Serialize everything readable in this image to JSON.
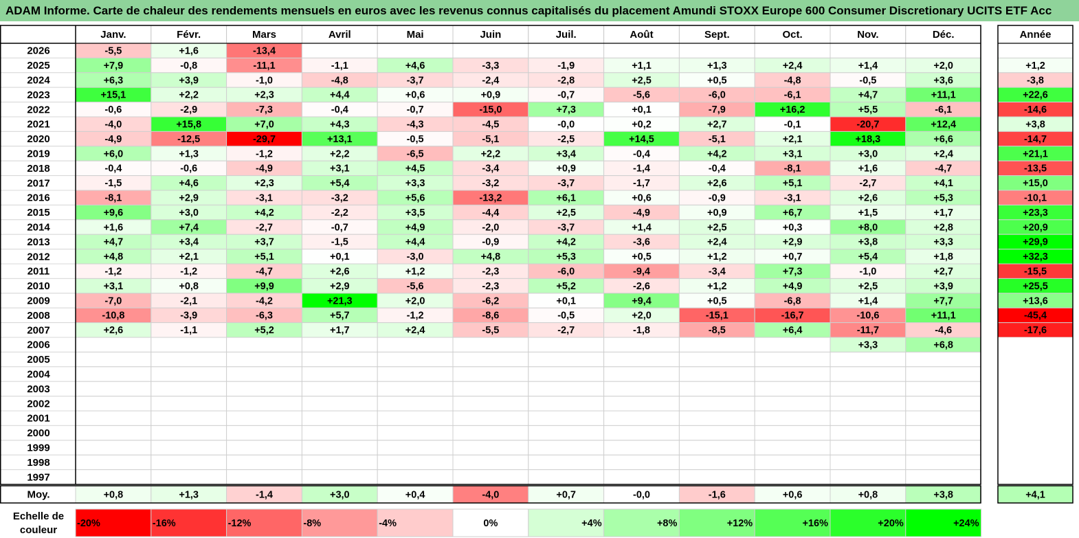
{
  "title": "ADAM Informe. Carte de chaleur des rendements mensuels en euros avec les revenus connus capitalisés du placement Amundi STOXX Europe 600 Consumer Discretionary UCITS ETF Acc",
  "chart_data": {
    "type": "heatmap",
    "months": [
      "Janv.",
      "Févr.",
      "Mars",
      "Avril",
      "Mai",
      "Juin",
      "Juil.",
      "Août",
      "Sept.",
      "Oct.",
      "Nov.",
      "Déc."
    ],
    "year_header": "Année",
    "rows": [
      {
        "year": "2026",
        "values": [
          "-5,5",
          "+1,6",
          "-13,4",
          "",
          "",
          "",
          "",
          "",
          "",
          "",
          "",
          ""
        ],
        "annual": ""
      },
      {
        "year": "2025",
        "values": [
          "+7,9",
          "-0,8",
          "-11,1",
          "-1,1",
          "+4,6",
          "-3,3",
          "-1,9",
          "+1,1",
          "+1,3",
          "+2,4",
          "+1,4",
          "+2,0"
        ],
        "annual": "+1,2"
      },
      {
        "year": "2024",
        "values": [
          "+6,3",
          "+3,9",
          "-1,0",
          "-4,8",
          "-3,7",
          "-2,4",
          "-2,8",
          "+2,5",
          "+0,5",
          "-4,8",
          "-0,5",
          "+3,6"
        ],
        "annual": "-3,8"
      },
      {
        "year": "2023",
        "values": [
          "+15,1",
          "+2,2",
          "+2,3",
          "+4,4",
          "+0,6",
          "+0,9",
          "-0,7",
          "-5,6",
          "-6,0",
          "-6,1",
          "+4,7",
          "+11,1"
        ],
        "annual": "+22,6"
      },
      {
        "year": "2022",
        "values": [
          "-0,6",
          "-2,9",
          "-7,3",
          "-0,4",
          "-0,7",
          "-15,0",
          "+7,3",
          "+0,1",
          "-7,9",
          "+16,2",
          "+5,5",
          "-6,1"
        ],
        "annual": "-14,6"
      },
      {
        "year": "2021",
        "values": [
          "-4,0",
          "+15,8",
          "+7,0",
          "+4,3",
          "-4,3",
          "-4,5",
          "-0,0",
          "+0,2",
          "+2,7",
          "-0,1",
          "-20,7",
          "+12,4"
        ],
        "annual": "+3,8"
      },
      {
        "year": "2020",
        "values": [
          "-4,9",
          "-12,5",
          "-29,7",
          "+13,1",
          "-0,5",
          "-5,1",
          "-2,5",
          "+14,5",
          "-5,1",
          "+2,1",
          "+18,3",
          "+6,6"
        ],
        "annual": "-14,7"
      },
      {
        "year": "2019",
        "values": [
          "+6,0",
          "+1,3",
          "-1,2",
          "+2,2",
          "-6,5",
          "+2,2",
          "+3,4",
          "-0,4",
          "+4,2",
          "+3,1",
          "+3,0",
          "+2,4"
        ],
        "annual": "+21,1"
      },
      {
        "year": "2018",
        "values": [
          "-0,4",
          "-0,6",
          "-4,9",
          "+3,1",
          "+4,5",
          "-3,4",
          "+0,9",
          "-1,4",
          "-0,4",
          "-8,1",
          "+1,6",
          "-4,7"
        ],
        "annual": "-13,5"
      },
      {
        "year": "2017",
        "values": [
          "-1,5",
          "+4,6",
          "+2,3",
          "+5,4",
          "+3,3",
          "-3,2",
          "-3,7",
          "-1,7",
          "+2,6",
          "+5,1",
          "-2,7",
          "+4,1"
        ],
        "annual": "+15,0"
      },
      {
        "year": "2016",
        "values": [
          "-8,1",
          "+2,9",
          "-3,1",
          "-3,2",
          "+5,6",
          "-13,2",
          "+6,1",
          "+0,6",
          "-0,9",
          "-3,1",
          "+2,6",
          "+5,3"
        ],
        "annual": "-10,1"
      },
      {
        "year": "2015",
        "values": [
          "+9,6",
          "+3,0",
          "+4,2",
          "-2,2",
          "+3,5",
          "-4,4",
          "+2,5",
          "-4,9",
          "+0,9",
          "+6,7",
          "+1,5",
          "+1,7"
        ],
        "annual": "+23,3"
      },
      {
        "year": "2014",
        "values": [
          "+1,6",
          "+7,4",
          "-2,7",
          "-0,7",
          "+4,9",
          "-2,0",
          "-3,7",
          "+1,4",
          "+2,5",
          "+0,3",
          "+8,0",
          "+2,8"
        ],
        "annual": "+20,9"
      },
      {
        "year": "2013",
        "values": [
          "+4,7",
          "+3,4",
          "+3,7",
          "-1,5",
          "+4,4",
          "-0,9",
          "+4,2",
          "-3,6",
          "+2,4",
          "+2,9",
          "+3,8",
          "+3,3"
        ],
        "annual": "+29,9"
      },
      {
        "year": "2012",
        "values": [
          "+4,8",
          "+2,1",
          "+5,1",
          "+0,1",
          "-3,0",
          "+4,8",
          "+5,3",
          "+0,5",
          "+1,2",
          "+0,7",
          "+5,4",
          "+1,8"
        ],
        "annual": "+32,3"
      },
      {
        "year": "2011",
        "values": [
          "-1,2",
          "-1,2",
          "-4,7",
          "+2,6",
          "+1,2",
          "-2,3",
          "-6,0",
          "-9,4",
          "-3,4",
          "+7,3",
          "-1,0",
          "+2,7"
        ],
        "annual": "-15,5"
      },
      {
        "year": "2010",
        "values": [
          "+3,1",
          "+0,8",
          "+9,9",
          "+2,9",
          "-5,6",
          "-2,3",
          "+5,2",
          "-2,6",
          "+1,2",
          "+4,9",
          "+2,5",
          "+3,9"
        ],
        "annual": "+25,5"
      },
      {
        "year": "2009",
        "values": [
          "-7,0",
          "-2,1",
          "-4,2",
          "+21,3",
          "+2,0",
          "-6,2",
          "+0,1",
          "+9,4",
          "+0,5",
          "-6,8",
          "+1,4",
          "+7,7"
        ],
        "annual": "+13,6"
      },
      {
        "year": "2008",
        "values": [
          "-10,8",
          "-3,9",
          "-6,3",
          "+5,7",
          "-1,2",
          "-8,6",
          "-0,5",
          "+2,0",
          "-15,1",
          "-16,7",
          "-10,6",
          "+11,1"
        ],
        "annual": "-45,4"
      },
      {
        "year": "2007",
        "values": [
          "+2,6",
          "-1,1",
          "+5,2",
          "+1,7",
          "+2,4",
          "-5,5",
          "-2,7",
          "-1,8",
          "-8,5",
          "+6,4",
          "-11,7",
          "-4,6"
        ],
        "annual": "-17,6"
      },
      {
        "year": "2006",
        "values": [
          "",
          "",
          "",
          "",
          "",
          "",
          "",
          "",
          "",
          "",
          "+3,3",
          "+6,8"
        ],
        "annual": ""
      },
      {
        "year": "2005",
        "values": [
          "",
          "",
          "",
          "",
          "",
          "",
          "",
          "",
          "",
          "",
          "",
          ""
        ],
        "annual": ""
      },
      {
        "year": "2004",
        "values": [
          "",
          "",
          "",
          "",
          "",
          "",
          "",
          "",
          "",
          "",
          "",
          ""
        ],
        "annual": ""
      },
      {
        "year": "2003",
        "values": [
          "",
          "",
          "",
          "",
          "",
          "",
          "",
          "",
          "",
          "",
          "",
          ""
        ],
        "annual": ""
      },
      {
        "year": "2002",
        "values": [
          "",
          "",
          "",
          "",
          "",
          "",
          "",
          "",
          "",
          "",
          "",
          ""
        ],
        "annual": ""
      },
      {
        "year": "2001",
        "values": [
          "",
          "",
          "",
          "",
          "",
          "",
          "",
          "",
          "",
          "",
          "",
          ""
        ],
        "annual": ""
      },
      {
        "year": "2000",
        "values": [
          "",
          "",
          "",
          "",
          "",
          "",
          "",
          "",
          "",
          "",
          "",
          ""
        ],
        "annual": ""
      },
      {
        "year": "1999",
        "values": [
          "",
          "",
          "",
          "",
          "",
          "",
          "",
          "",
          "",
          "",
          "",
          ""
        ],
        "annual": ""
      },
      {
        "year": "1998",
        "values": [
          "",
          "",
          "",
          "",
          "",
          "",
          "",
          "",
          "",
          "",
          "",
          ""
        ],
        "annual": ""
      },
      {
        "year": "1997",
        "values": [
          "",
          "",
          "",
          "",
          "",
          "",
          "",
          "",
          "",
          "",
          "",
          ""
        ],
        "annual": ""
      }
    ],
    "average": {
      "label": "Moy.",
      "values": [
        "+0,8",
        "+1,3",
        "-1,4",
        "+3,0",
        "+0,4",
        "-4,0",
        "+0,7",
        "-0,0",
        "-1,6",
        "+0,6",
        "+0,8",
        "+3,8"
      ],
      "annual": "+4,1"
    },
    "scale": {
      "label_line1": "Echelle de",
      "label_line2": "couleur",
      "steps": [
        "-20%",
        "-16%",
        "-12%",
        "-8%",
        "-4%",
        "0%",
        "+4%",
        "+8%",
        "+12%",
        "+16%",
        "+20%",
        "+24%"
      ]
    },
    "colors": {
      "negative": "#ff0000",
      "neutral": "#ffffff",
      "positive": "#00ff00",
      "title_bg": "#8fd39a"
    }
  }
}
